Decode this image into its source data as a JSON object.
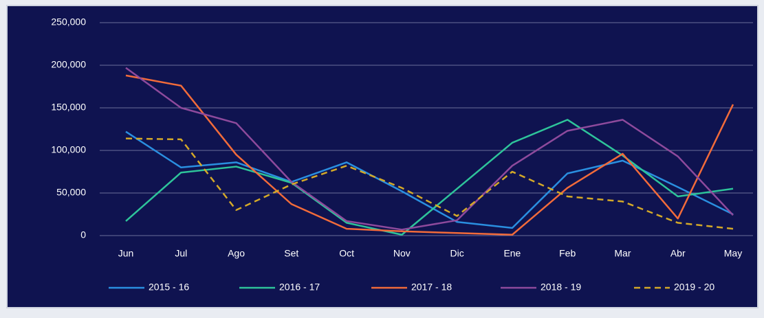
{
  "chart_data": {
    "type": "line",
    "categories": [
      "Jun",
      "Jul",
      "Ago",
      "Set",
      "Oct",
      "Nov",
      "Dic",
      "Ene",
      "Feb",
      "Mar",
      "Abr",
      "May"
    ],
    "series": [
      {
        "name": "2015 - 16",
        "color": "#2a8fe0",
        "values": [
          122000,
          80000,
          86000,
          63000,
          86000,
          52000,
          16000,
          9000,
          73000,
          88000,
          57000,
          25000
        ]
      },
      {
        "name": "2016 - 17",
        "color": "#2ec49a",
        "values": [
          17000,
          74000,
          81000,
          62000,
          15000,
          1000,
          55000,
          109000,
          136000,
          94000,
          46000,
          55000
        ]
      },
      {
        "name": "2017 - 18",
        "color": "#f26b3a",
        "values": [
          188000,
          176000,
          95000,
          37000,
          8000,
          5000,
          3000,
          1000,
          56000,
          96000,
          20000,
          154000
        ]
      },
      {
        "name": "2018 - 19",
        "color": "#8e4a9c",
        "values": [
          197000,
          150000,
          132000,
          63000,
          17000,
          7000,
          18000,
          82000,
          123000,
          136000,
          93000,
          24000
        ]
      },
      {
        "name": "2019 - 20",
        "color": "#d4a928",
        "dashed": true,
        "values": [
          114000,
          113000,
          30000,
          60000,
          82000,
          56000,
          23000,
          75000,
          46000,
          40000,
          15000,
          8000
        ]
      }
    ],
    "ylim": [
      0,
      250000
    ],
    "yticks": [
      0,
      {
        "value": 50000,
        "label": "50,000"
      },
      {
        "value": 100000,
        "label": "100,000"
      },
      {
        "value": 150000,
        "label": "150,000"
      },
      {
        "value": 200000,
        "label": "200,000"
      },
      {
        "value": 250000,
        "label": "250,000"
      }
    ],
    "grid": true,
    "legend": "bottom"
  }
}
